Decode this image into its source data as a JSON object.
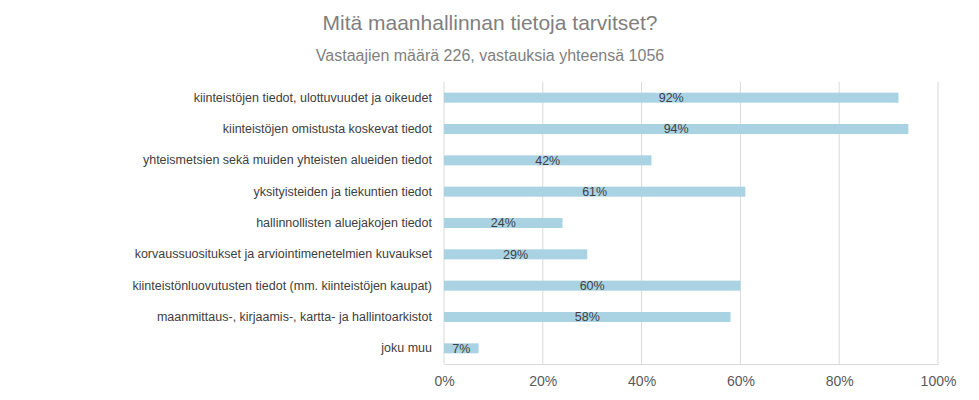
{
  "chart_data": {
    "type": "bar",
    "orientation": "horizontal",
    "title": "Mitä maanhallinnan tietoja tarvitset?",
    "subtitle": "Vastaajien määrä 226, vastauksia yhteensä 1056",
    "categories": [
      "kiinteistöjen tiedot, ulottuvuudet ja oikeudet",
      "kiinteistöjen omistusta koskevat tiedot",
      "yhteismetsien sekä muiden yhteisten alueiden tiedot",
      "yksityisteiden ja tiekuntien tiedot",
      "hallinnollisten aluejakojen tiedot",
      "korvaussuositukset ja arviointimenetelmien kuvaukset",
      "kiinteistönluovutusten tiedot (mm. kiinteistöjen kaupat)",
      "maanmittaus-, kirjaamis-, kartta- ja hallintoarkistot",
      "joku muu"
    ],
    "values": [
      92,
      94,
      42,
      61,
      24,
      29,
      60,
      58,
      7
    ],
    "value_labels": [
      "92%",
      "94%",
      "42%",
      "61%",
      "24%",
      "29%",
      "60%",
      "58%",
      "7%"
    ],
    "data_labels": true,
    "color": "#a9d3e3",
    "xlim": [
      0,
      100
    ],
    "xticks": [
      {
        "value": 0,
        "label": "0%"
      },
      {
        "value": 20,
        "label": "20%"
      },
      {
        "value": 40,
        "label": "40%"
      },
      {
        "value": 60,
        "label": "60%"
      },
      {
        "value": 80,
        "label": "80%"
      },
      {
        "value": 100,
        "label": "100%"
      }
    ],
    "grid": true
  }
}
